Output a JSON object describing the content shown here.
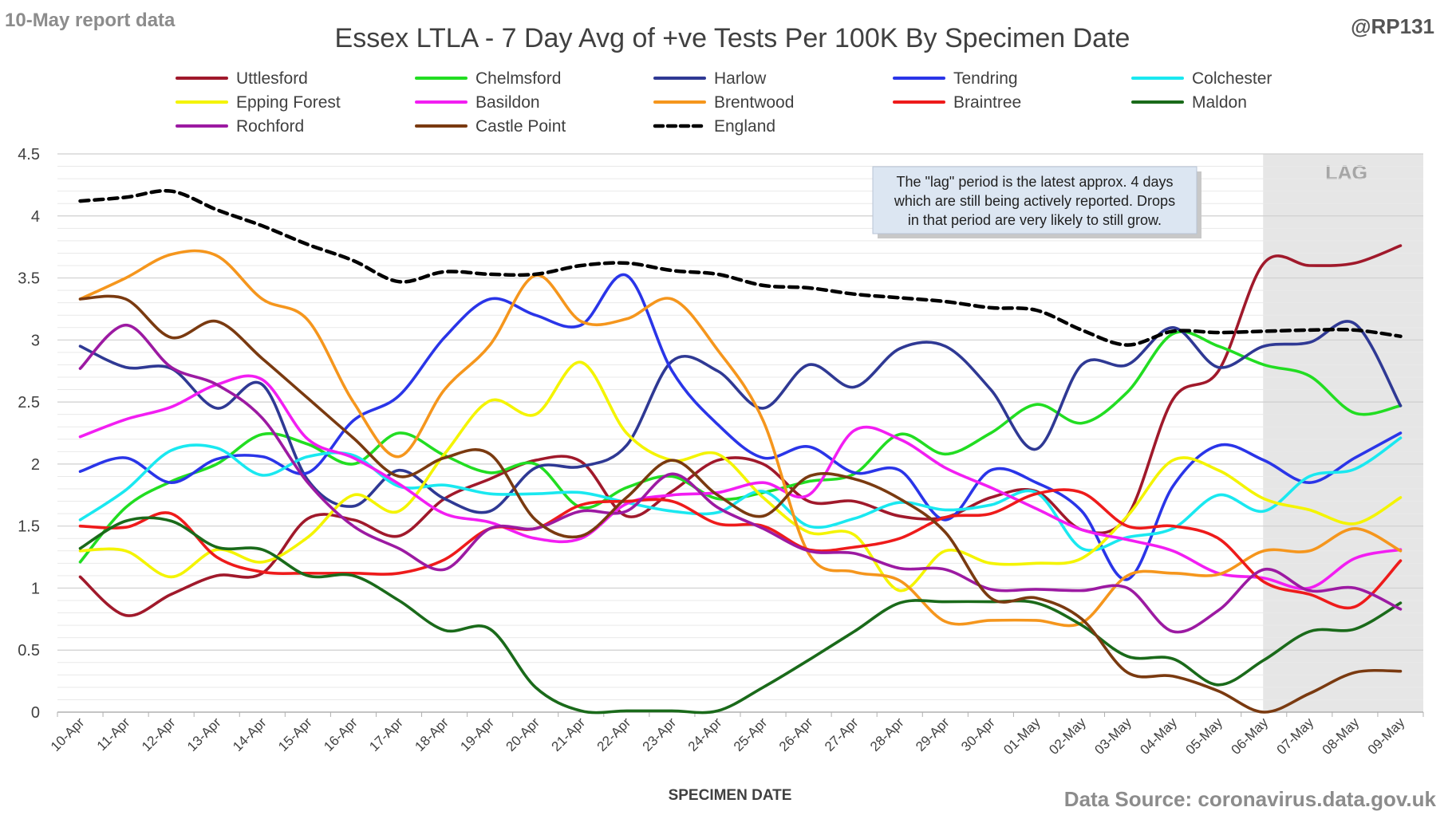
{
  "header": {
    "report_label": "10-May report data",
    "handle": "@RP131",
    "source": "Data Source: coronavirus.data.gov.uk"
  },
  "note": {
    "lines": [
      "The \"lag\" period is the latest approx. 4 days",
      "which are still being actively reported.  Drops",
      "in that period are very likely to still grow."
    ]
  },
  "lag_label": "LAG",
  "chart_data": {
    "type": "line",
    "title": "Essex LTLA - 7 Day Avg of +ve Tests Per 100K By Specimen Date",
    "xlabel": "SPECIMEN DATE",
    "ylabel": "",
    "ylim": [
      0,
      4.5
    ],
    "yticks": [
      "0",
      "0.5",
      "1",
      "1.5",
      "2",
      "2.5",
      "3",
      "3.5",
      "4",
      "4.5"
    ],
    "grid": true,
    "legend_position": "top",
    "lag_start": "06-May",
    "categories": [
      "10-Apr",
      "11-Apr",
      "12-Apr",
      "13-Apr",
      "14-Apr",
      "15-Apr",
      "16-Apr",
      "17-Apr",
      "18-Apr",
      "19-Apr",
      "20-Apr",
      "21-Apr",
      "22-Apr",
      "23-Apr",
      "24-Apr",
      "25-Apr",
      "26-Apr",
      "27-Apr",
      "28-Apr",
      "29-Apr",
      "30-Apr",
      "01-May",
      "02-May",
      "03-May",
      "04-May",
      "05-May",
      "06-May",
      "07-May",
      "08-May",
      "09-May"
    ],
    "series": [
      {
        "name": "Uttlesford",
        "color": "#a0192b",
        "dashed": false,
        "values": [
          1.09,
          0.78,
          0.95,
          1.1,
          1.12,
          1.56,
          1.55,
          1.42,
          1.72,
          1.88,
          2.03,
          2.02,
          1.58,
          1.78,
          2.03,
          2.0,
          1.7,
          1.7,
          1.58,
          1.57,
          1.73,
          1.78,
          1.47,
          1.58,
          2.52,
          2.75,
          3.62,
          3.6,
          3.62,
          3.76
        ]
      },
      {
        "name": "Chelmsford",
        "color": "#22dd22",
        "dashed": false,
        "values": [
          1.21,
          1.65,
          1.86,
          2.0,
          2.24,
          2.16,
          2.0,
          2.25,
          2.07,
          1.93,
          2.0,
          1.65,
          1.81,
          1.9,
          1.72,
          1.77,
          1.86,
          1.92,
          2.24,
          2.08,
          2.25,
          2.48,
          2.33,
          2.58,
          3.05,
          2.95,
          2.8,
          2.71,
          2.41,
          2.47
        ]
      },
      {
        "name": "Harlow",
        "color": "#2f3994",
        "dashed": false,
        "values": [
          2.95,
          2.78,
          2.77,
          2.45,
          2.64,
          1.87,
          1.66,
          1.95,
          1.72,
          1.62,
          1.97,
          1.98,
          2.15,
          2.83,
          2.75,
          2.45,
          2.8,
          2.62,
          2.93,
          2.95,
          2.6,
          2.12,
          2.8,
          2.8,
          3.1,
          2.78,
          2.95,
          2.98,
          3.13,
          2.47
        ]
      },
      {
        "name": "Tendring",
        "color": "#2a35e8",
        "dashed": false,
        "values": [
          1.94,
          2.05,
          1.85,
          2.04,
          2.06,
          1.93,
          2.35,
          2.55,
          3.02,
          3.33,
          3.2,
          3.12,
          3.52,
          2.75,
          2.32,
          2.05,
          2.14,
          1.93,
          1.95,
          1.55,
          1.95,
          1.85,
          1.62,
          1.07,
          1.82,
          2.15,
          2.03,
          1.85,
          2.05,
          2.25
        ]
      },
      {
        "name": "Colchester",
        "color": "#1ae8f0",
        "dashed": false,
        "values": [
          1.55,
          1.79,
          2.11,
          2.13,
          1.91,
          2.06,
          2.07,
          1.82,
          1.83,
          1.76,
          1.76,
          1.77,
          1.69,
          1.62,
          1.61,
          1.78,
          1.5,
          1.56,
          1.69,
          1.63,
          1.67,
          1.77,
          1.32,
          1.41,
          1.48,
          1.75,
          1.62,
          1.9,
          1.96,
          2.21
        ]
      },
      {
        "name": "Epping Forest",
        "color": "#f4f400",
        "dashed": false,
        "values": [
          1.3,
          1.3,
          1.09,
          1.31,
          1.21,
          1.41,
          1.75,
          1.62,
          2.08,
          2.51,
          2.4,
          2.82,
          2.25,
          2.03,
          2.08,
          1.73,
          1.45,
          1.43,
          0.98,
          1.3,
          1.2,
          1.2,
          1.24,
          1.58,
          2.03,
          1.95,
          1.72,
          1.63,
          1.52,
          1.73
        ]
      },
      {
        "name": "Basildon",
        "color": "#f21ef2",
        "dashed": false,
        "values": [
          2.22,
          2.36,
          2.46,
          2.64,
          2.68,
          2.2,
          2.05,
          1.84,
          1.6,
          1.53,
          1.4,
          1.4,
          1.68,
          1.75,
          1.77,
          1.85,
          1.75,
          2.27,
          2.2,
          1.97,
          1.81,
          1.64,
          1.47,
          1.39,
          1.3,
          1.12,
          1.08,
          1.0,
          1.24,
          1.31
        ]
      },
      {
        "name": "Brentwood",
        "color": "#f5961d",
        "dashed": false,
        "values": [
          3.33,
          3.5,
          3.69,
          3.68,
          3.33,
          3.16,
          2.5,
          2.06,
          2.6,
          2.96,
          3.52,
          3.15,
          3.17,
          3.33,
          2.92,
          2.35,
          1.28,
          1.13,
          1.06,
          0.73,
          0.74,
          0.74,
          0.72,
          1.1,
          1.12,
          1.11,
          1.3,
          1.3,
          1.48,
          1.3
        ]
      },
      {
        "name": "Braintree",
        "color": "#ee1b1b",
        "dashed": false,
        "values": [
          1.5,
          1.49,
          1.6,
          1.25,
          1.13,
          1.12,
          1.12,
          1.12,
          1.23,
          1.48,
          1.48,
          1.67,
          1.7,
          1.7,
          1.52,
          1.5,
          1.31,
          1.33,
          1.4,
          1.57,
          1.6,
          1.76,
          1.77,
          1.5,
          1.5,
          1.4,
          1.05,
          0.95,
          0.85,
          1.22
        ]
      },
      {
        "name": "Maldon",
        "color": "#1a6a1a",
        "dashed": false,
        "values": [
          1.32,
          1.54,
          1.54,
          1.33,
          1.31,
          1.1,
          1.1,
          0.9,
          0.66,
          0.67,
          0.2,
          0.01,
          0.01,
          0.01,
          0.01,
          0.2,
          0.42,
          0.65,
          0.88,
          0.89,
          0.89,
          0.88,
          0.7,
          0.45,
          0.43,
          0.22,
          0.42,
          0.65,
          0.67,
          0.88
        ]
      },
      {
        "name": "Rochford",
        "color": "#9c1aa2",
        "dashed": false,
        "values": [
          2.77,
          3.12,
          2.78,
          2.64,
          2.37,
          1.85,
          1.5,
          1.32,
          1.15,
          1.48,
          1.48,
          1.62,
          1.62,
          1.92,
          1.65,
          1.48,
          1.3,
          1.28,
          1.16,
          1.15,
          0.99,
          0.99,
          0.98,
          1.0,
          0.65,
          0.82,
          1.15,
          0.98,
          1.0,
          0.83
        ]
      },
      {
        "name": "Castle Point",
        "color": "#7a3a10",
        "dashed": false,
        "values": [
          3.33,
          3.33,
          3.02,
          3.15,
          2.85,
          2.53,
          2.21,
          1.9,
          2.05,
          2.08,
          1.55,
          1.42,
          1.73,
          2.03,
          1.75,
          1.58,
          1.9,
          1.88,
          1.72,
          1.45,
          0.92,
          0.92,
          0.75,
          0.32,
          0.29,
          0.17,
          0.0,
          0.15,
          0.32,
          0.33
        ]
      },
      {
        "name": "England",
        "color": "#000000",
        "dashed": true,
        "values": [
          4.12,
          4.15,
          4.2,
          4.05,
          3.92,
          3.77,
          3.64,
          3.47,
          3.55,
          3.53,
          3.53,
          3.6,
          3.62,
          3.56,
          3.53,
          3.44,
          3.42,
          3.37,
          3.34,
          3.31,
          3.26,
          3.24,
          3.08,
          2.96,
          3.07,
          3.06,
          3.07,
          3.08,
          3.08,
          3.03
        ]
      }
    ]
  }
}
